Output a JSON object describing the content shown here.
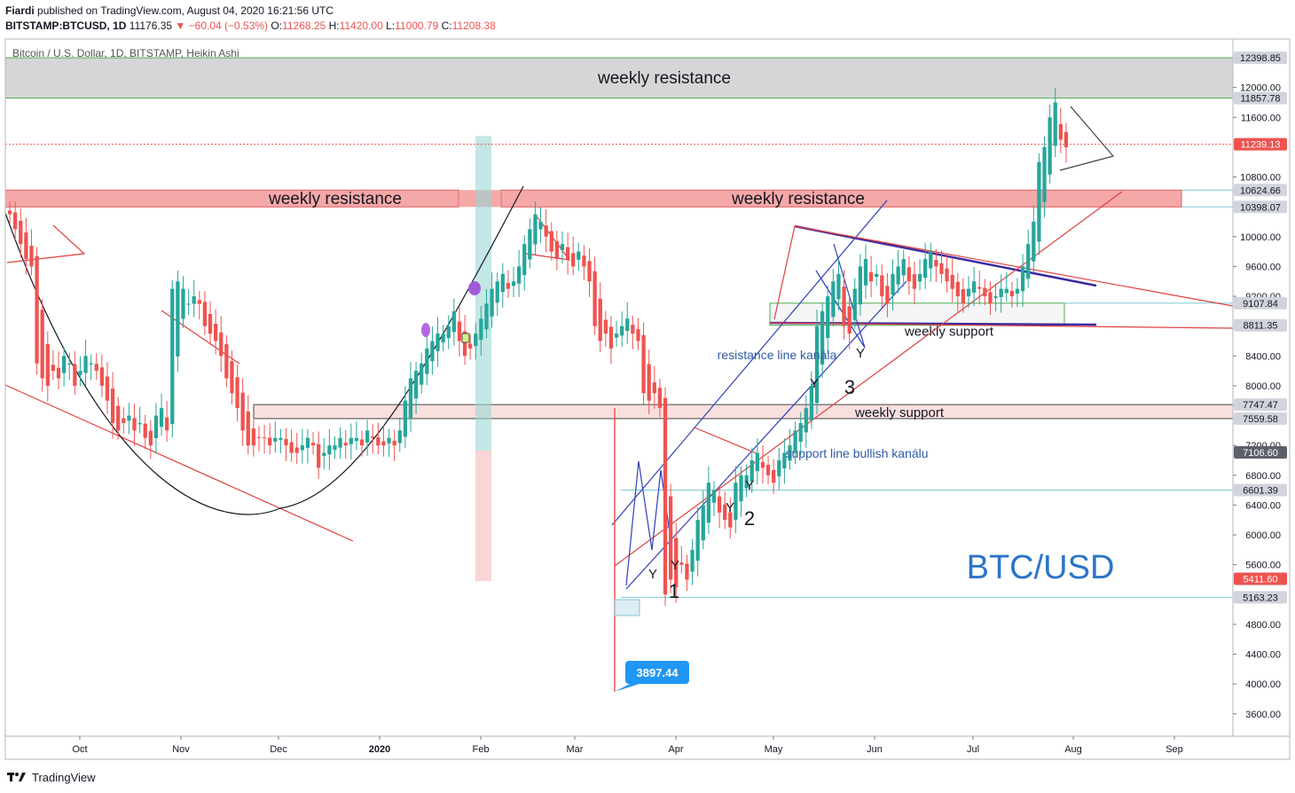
{
  "header": {
    "author": "Fiardi",
    "published": "published on TradingView.com, August 04, 2020 16:21:56 UTC",
    "symbol": "BITSTAMP:BTCUSD, 1D",
    "last": "11176.35",
    "change_arrow": "▼",
    "change": "−60.04 (−0.53%)",
    "o_label": "O:",
    "o": "11268.25",
    "h_label": "H:",
    "h": "11420.00",
    "l_label": "L:",
    "l": "11000.79",
    "c_label": "C:",
    "c": "11208.38"
  },
  "chart_data": {
    "type": "candlestick",
    "title": "Bitcoin / U.S. Dollar, 1D, BITSTAMP, Heikin Ashi",
    "watermark": "BTC/USD",
    "x_ticks": [
      "Oct",
      "Nov",
      "Dec",
      "2020",
      "Feb",
      "Mar",
      "Apr",
      "May",
      "Jun",
      "Jul",
      "Aug",
      "Sep"
    ],
    "y_ticks": [
      "12000.00",
      "11600.00",
      "10800.00",
      "10000.00",
      "9600.00",
      "9200.00",
      "8400.00",
      "8000.00",
      "7200.00",
      "6800.00",
      "6400.00",
      "6000.00",
      "5600.00",
      "4800.00",
      "4400.00",
      "4000.00",
      "3600.00"
    ],
    "ylim": [
      3300,
      12650
    ],
    "price_labels": [
      {
        "value": 12398.85,
        "text": "12398.85",
        "bg": "#d1d4dc",
        "fg": "#131722"
      },
      {
        "value": 11857.78,
        "text": "11857.78",
        "bg": "#d1d4dc",
        "fg": "#131722"
      },
      {
        "value": 11239.13,
        "text": "11239.13",
        "bg": "#ef5350",
        "fg": "#ffffff"
      },
      {
        "value": 10624.66,
        "text": "10624.66",
        "bg": "#d1d4dc",
        "fg": "#131722"
      },
      {
        "value": 10398.07,
        "text": "10398.07",
        "bg": "#d1d4dc",
        "fg": "#131722"
      },
      {
        "value": 9107.84,
        "text": "9107.84",
        "bg": "#d1d4dc",
        "fg": "#131722"
      },
      {
        "value": 8811.35,
        "text": "8811.35",
        "bg": "#d1d4dc",
        "fg": "#131722"
      },
      {
        "value": 7747.47,
        "text": "7747.47",
        "bg": "#d1d4dc",
        "fg": "#131722"
      },
      {
        "value": 7559.58,
        "text": "7559.58",
        "bg": "#d1d4dc",
        "fg": "#131722"
      },
      {
        "value": 7106.6,
        "text": "7106.60",
        "bg": "#5d606b",
        "fg": "#ffffff"
      },
      {
        "value": 6601.39,
        "text": "6601.39",
        "bg": "#d1d4dc",
        "fg": "#131722"
      },
      {
        "value": 5411.6,
        "text": "5411.60",
        "bg": "#ef5350",
        "fg": "#ffffff"
      },
      {
        "value": 5163.23,
        "text": "5163.23",
        "bg": "#d1d4dc",
        "fg": "#131722"
      }
    ],
    "zones": [
      {
        "label": "weekly resistance",
        "top": 12398.85,
        "bottom": 11857.78,
        "color": "#c8c8c8"
      },
      {
        "label": "weekly resistance",
        "top": 10624.66,
        "bottom": 10398.07,
        "color": "#f28b8b"
      },
      {
        "label": "weekly resistance",
        "top": 10624.66,
        "bottom": 10398.07,
        "color": "#f28b8b"
      },
      {
        "label": "weekly support",
        "top": 7747.47,
        "bottom": 7559.58,
        "color": "#f8d4d4"
      },
      {
        "label": "weekly support",
        "top": 9107.84,
        "bottom": 8811.35,
        "color": "#eeeeee"
      }
    ],
    "annotations": [
      {
        "text": "resistance line kanála",
        "color": "#2e5aa6"
      },
      {
        "text": "support line bullish kanálu",
        "color": "#2e5aa6"
      },
      {
        "text": "1",
        "color": "#131722"
      },
      {
        "text": "2",
        "color": "#131722"
      },
      {
        "text": "3",
        "color": "#131722"
      },
      {
        "text": "Y",
        "color": "#131722"
      }
    ],
    "low_callout": {
      "value": 3897.44,
      "text": "3897.44"
    },
    "current_price": 11239.13,
    "series_closes_approx": [
      10300,
      10100,
      9900,
      9700,
      9600,
      8300,
      8100,
      8000,
      8200,
      8100,
      8400,
      8300,
      8000,
      8200,
      8400,
      8300,
      8200,
      8000,
      7800,
      7500,
      7400,
      7500,
      7600,
      7400,
      7500,
      7300,
      7200,
      7600,
      7700,
      7400,
      9300,
      9400,
      9300,
      9100,
      9200,
      9100,
      8800,
      8700,
      8600,
      8400,
      8100,
      7900,
      7700,
      7400,
      7200,
      7200,
      7300,
      7300,
      7200,
      7300,
      7300,
      7200,
      7100,
      7100,
      7200,
      7300,
      7200,
      6900,
      7100,
      7200,
      7200,
      7300,
      7200,
      7300,
      7300,
      7200,
      7400,
      7300,
      7200,
      7200,
      7300,
      7200,
      7400,
      7800,
      8100,
      8200,
      8300,
      8500,
      8600,
      8700,
      8700,
      8800,
      9000,
      8600,
      8400,
      8500,
      8700,
      8900,
      9100,
      9300,
      9400,
      9500,
      9300,
      9400,
      9600,
      9900,
      10100,
      10300,
      10200,
      10000,
      9800,
      9700,
      9900,
      9700,
      9600,
      9800,
      9600,
      9400,
      8800,
      8600,
      8700,
      8500,
      8700,
      8800,
      8900,
      8700,
      8600,
      7900,
      7800,
      7900,
      7700,
      5200,
      5400,
      5300,
      5600,
      5400,
      5800,
      6200,
      6400,
      6700,
      6600,
      6300,
      6200,
      6100,
      6700,
      6800,
      6800,
      7000,
      7100,
      6900,
      6800,
      6700,
      7000,
      7100,
      7200,
      7400,
      7500,
      7700,
      8000,
      8800,
      9000,
      9200,
      9400,
      9500,
      8800,
      8700,
      9300,
      9600,
      9700,
      9400,
      9500,
      9200,
      9100,
      9500,
      9600,
      9700,
      9400,
      9300,
      9500,
      9700,
      9800,
      9600,
      9500,
      9400,
      9300,
      9200,
      9100,
      9300,
      9400,
      9300,
      9200,
      9100,
      9200,
      9300,
      9300,
      9200,
      9300,
      9600,
      9900,
      10200,
      11000,
      11200,
      11600,
      11800,
      11300,
      11200
    ]
  },
  "footer": {
    "brand": "TradingView"
  }
}
